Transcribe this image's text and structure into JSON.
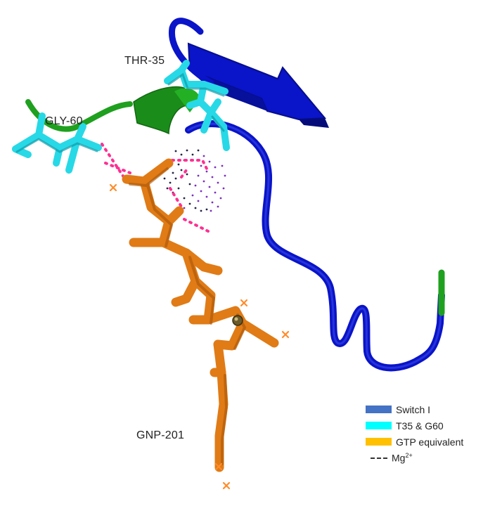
{
  "labels": {
    "thr": "THR-35",
    "gly": "GLY-60",
    "gnp": "GNP-201"
  },
  "legend": [
    {
      "key": "switch1",
      "label": "Switch I",
      "color": "#4472c4",
      "style": "bar"
    },
    {
      "key": "t35g60",
      "label": "T35 & G60",
      "color": "#00ffff",
      "style": "bar"
    },
    {
      "key": "gtp",
      "label": "GTP equivalent",
      "color": "#ffc000",
      "style": "bar"
    },
    {
      "key": "mg",
      "label": "Mg",
      "superscript": "2+",
      "color": "#333333",
      "style": "dash"
    }
  ],
  "colors": {
    "switch_ribbon": "#0a14c8",
    "switch_dark": "#07109a",
    "helix_green": "#1fa01f",
    "cyan_sticks": "#27d9e6",
    "cyan_dark": "#129aa8",
    "gnp_orange": "#e07b16",
    "gnp_dark": "#a8560a",
    "hbond_pink": "#ff2f92",
    "mg_dots_dark": "#222244",
    "mg_dots_purple": "#7b2fbf",
    "water_cross": "#ff8c2a"
  }
}
